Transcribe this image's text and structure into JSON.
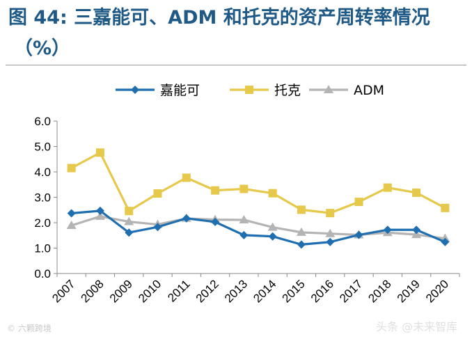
{
  "title": {
    "line1": "图 44: 三嘉能可、ADM 和托克的资产周转率情况",
    "line2": "（%）"
  },
  "chart_data": {
    "type": "line",
    "categories": [
      "2007",
      "2008",
      "2009",
      "2010",
      "2011",
      "2012",
      "2013",
      "2014",
      "2015",
      "2016",
      "2017",
      "2018",
      "2019",
      "2020"
    ],
    "series": [
      {
        "name": "嘉能可",
        "color": "#1f6fb0",
        "marker": "diamond",
        "values": [
          2.37,
          2.47,
          1.61,
          1.83,
          2.17,
          2.03,
          1.51,
          1.46,
          1.14,
          1.24,
          1.52,
          1.72,
          1.72,
          1.24
        ]
      },
      {
        "name": "托克",
        "color": "#e6c84b",
        "marker": "square",
        "values": [
          4.15,
          4.76,
          2.46,
          3.15,
          3.77,
          3.27,
          3.33,
          3.16,
          2.51,
          2.38,
          2.82,
          3.38,
          3.18,
          2.58
        ]
      },
      {
        "name": "ADM",
        "color": "#b4b4b4",
        "marker": "triangle",
        "values": [
          1.89,
          2.25,
          2.04,
          1.93,
          2.17,
          2.12,
          2.11,
          1.82,
          1.62,
          1.57,
          1.52,
          1.61,
          1.53,
          1.38
        ]
      }
    ],
    "yticks": [
      "6.0",
      "5.0",
      "4.0",
      "3.0",
      "2.0",
      "1.0",
      "0.0"
    ],
    "ylim": [
      0,
      6
    ],
    "legend_position": "top-center",
    "xlabel": "",
    "ylabel": ""
  },
  "watermarks": {
    "left": "© 六颗跨境",
    "right": "头条 @未来智库"
  }
}
